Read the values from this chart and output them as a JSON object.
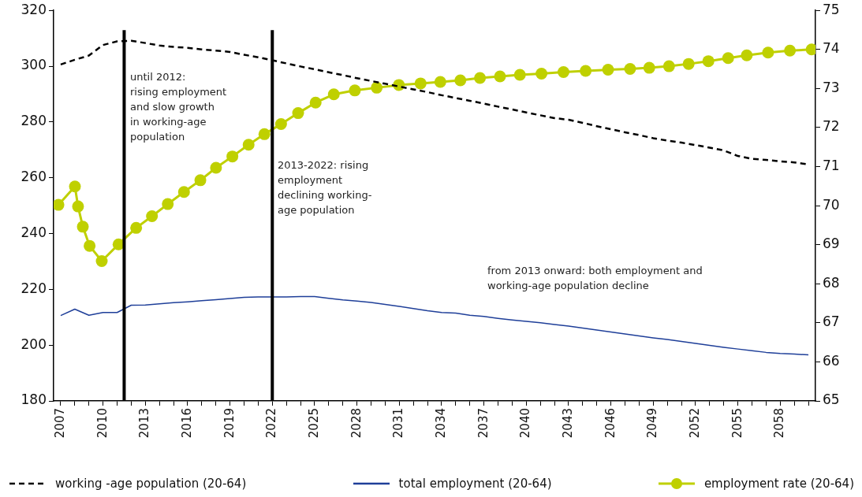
{
  "chart_data": {
    "type": "line",
    "xlim": [
      2006.5,
      2060.5
    ],
    "xticks": [
      {
        "value": 2007,
        "label": "2007"
      },
      {
        "value": 2008,
        "label": null
      },
      {
        "value": 2009,
        "label": null
      },
      {
        "value": 2010,
        "label": "2010"
      },
      {
        "value": 2011,
        "label": null
      },
      {
        "value": 2012,
        "label": null
      },
      {
        "value": 2013,
        "label": "2013"
      },
      {
        "value": 2014,
        "label": null
      },
      {
        "value": 2015,
        "label": null
      },
      {
        "value": 2016,
        "label": "2016"
      },
      {
        "value": 2017,
        "label": null
      },
      {
        "value": 2018,
        "label": null
      },
      {
        "value": 2019,
        "label": "2019"
      },
      {
        "value": 2020,
        "label": null
      },
      {
        "value": 2021,
        "label": null
      },
      {
        "value": 2022,
        "label": "2022"
      },
      {
        "value": 2023,
        "label": null
      },
      {
        "value": 2024,
        "label": null
      },
      {
        "value": 2025,
        "label": "2025"
      },
      {
        "value": 2026,
        "label": null
      },
      {
        "value": 2027,
        "label": null
      },
      {
        "value": 2028,
        "label": "2028"
      },
      {
        "value": 2029,
        "label": null
      },
      {
        "value": 2030,
        "label": null
      },
      {
        "value": 2031,
        "label": "2031"
      },
      {
        "value": 2032,
        "label": null
      },
      {
        "value": 2033,
        "label": null
      },
      {
        "value": 2034,
        "label": "2034"
      },
      {
        "value": 2035,
        "label": null
      },
      {
        "value": 2036,
        "label": null
      },
      {
        "value": 2037,
        "label": "2037"
      },
      {
        "value": 2038,
        "label": null
      },
      {
        "value": 2039,
        "label": null
      },
      {
        "value": 2040,
        "label": "2040"
      },
      {
        "value": 2041,
        "label": null
      },
      {
        "value": 2042,
        "label": null
      },
      {
        "value": 2043,
        "label": "2043"
      },
      {
        "value": 2044,
        "label": null
      },
      {
        "value": 2045,
        "label": null
      },
      {
        "value": 2046,
        "label": "2046"
      },
      {
        "value": 2047,
        "label": null
      },
      {
        "value": 2048,
        "label": null
      },
      {
        "value": 2049,
        "label": "2049"
      },
      {
        "value": 2050,
        "label": null
      },
      {
        "value": 2051,
        "label": null
      },
      {
        "value": 2052,
        "label": "2052"
      },
      {
        "value": 2053,
        "label": null
      },
      {
        "value": 2054,
        "label": null
      },
      {
        "value": 2055,
        "label": "2055"
      },
      {
        "value": 2056,
        "label": null
      },
      {
        "value": 2057,
        "label": null
      },
      {
        "value": 2058,
        "label": "2058"
      },
      {
        "value": 2059,
        "label": null
      },
      {
        "value": 2060,
        "label": null
      }
    ],
    "ylim": [
      180,
      320
    ],
    "yticks": [
      180,
      200,
      220,
      240,
      260,
      280,
      300,
      320
    ],
    "y2lim": [
      65,
      75
    ],
    "y2ticks": [
      65,
      66,
      67,
      68,
      69,
      70,
      71,
      72,
      73,
      74,
      75
    ],
    "grid": false,
    "legend": "bottom",
    "x": [
      2007,
      2008,
      2009,
      2010,
      2011,
      2012,
      2013,
      2014,
      2015,
      2016,
      2017,
      2018,
      2019,
      2020,
      2021,
      2022,
      2023,
      2024,
      2025,
      2026,
      2027,
      2028,
      2029,
      2030,
      2031,
      2032,
      2033,
      2034,
      2035,
      2036,
      2037,
      2038,
      2039,
      2040,
      2041,
      2042,
      2043,
      2044,
      2045,
      2046,
      2047,
      2048,
      2049,
      2050,
      2051,
      2052,
      2053,
      2054,
      2055,
      2056,
      2057,
      2058,
      2059,
      2060
    ],
    "series": [
      {
        "name": "working -age population (20-64)",
        "color": "#000000",
        "line_style": "dashed",
        "marker": "none",
        "values": [
          300.6,
          302.3,
          303.8,
          307.6,
          308.9,
          309.1,
          308.3,
          307.4,
          306.9,
          306.6,
          306.0,
          305.6,
          305.1,
          304.1,
          303.2,
          302.1,
          301.0,
          299.9,
          298.9,
          297.8,
          296.8,
          295.7,
          294.7,
          293.7,
          292.7,
          291.7,
          290.7,
          289.6,
          288.6,
          287.6,
          286.6,
          285.5,
          284.5,
          283.4,
          282.4,
          281.4,
          280.8,
          279.7,
          278.5,
          277.4,
          276.3,
          275.3,
          274.2,
          273.3,
          272.6,
          271.7,
          270.8,
          269.8,
          267.8,
          266.8,
          266.4,
          265.9,
          265.5,
          264.8
        ]
      },
      {
        "name": "total employment (20-64)",
        "color": "#1f3f99",
        "line_style": "solid",
        "marker": "none",
        "values": [
          210.6,
          212.9,
          210.7,
          211.7,
          211.7,
          214.3,
          214.4,
          214.8,
          215.2,
          215.5,
          215.9,
          216.3,
          216.7,
          217.1,
          217.3,
          217.3,
          217.3,
          217.4,
          217.4,
          216.8,
          216.2,
          215.8,
          215.3,
          214.6,
          213.9,
          213.1,
          212.3,
          211.7,
          211.5,
          210.7,
          210.3,
          209.6,
          209.0,
          208.5,
          208.0,
          207.4,
          206.8,
          206.1,
          205.4,
          204.7,
          204.0,
          203.3,
          202.6,
          202.0,
          201.3,
          200.6,
          199.9,
          199.2,
          198.6,
          198.0,
          197.4,
          197.0,
          196.8,
          196.5
        ]
      },
      {
        "name": "employment rate (20-64)",
        "color": "#bfd000",
        "line_style": "solid",
        "marker": "circle",
        "axis": "y2",
        "x": [
          2006.84,
          2008.01,
          2008.23,
          2008.57,
          2009.05,
          2009.91,
          2011.1,
          2012.35,
          2013.47,
          2014.59,
          2015.74,
          2016.9,
          2018.01,
          2019.17,
          2020.32,
          2021.44,
          2022.62,
          2023.83,
          2025.07,
          2026.36,
          2027.85,
          2029.4,
          2030.97,
          2032.51,
          2033.91,
          2035.33,
          2036.72,
          2038.14,
          2039.55,
          2041.08,
          2042.64,
          2044.21,
          2045.8,
          2047.36,
          2048.72,
          2050.12,
          2051.51,
          2052.91,
          2054.31,
          2055.63,
          2057.14,
          2058.69,
          2060.23
        ],
        "values": [
          70.02,
          70.49,
          69.98,
          69.46,
          68.97,
          68.58,
          69.01,
          69.43,
          69.73,
          70.04,
          70.35,
          70.65,
          70.97,
          71.26,
          71.56,
          71.83,
          72.09,
          72.37,
          72.64,
          72.85,
          72.95,
          73.02,
          73.09,
          73.13,
          73.17,
          73.21,
          73.27,
          73.31,
          73.35,
          73.38,
          73.42,
          73.45,
          73.48,
          73.5,
          73.53,
          73.57,
          73.63,
          73.7,
          73.78,
          73.85,
          73.92,
          73.97,
          74.0
        ]
      }
    ],
    "ref_lines": [
      {
        "axis": "x",
        "value": 2011.5,
        "color": "#000000"
      },
      {
        "axis": "x",
        "value": 2022,
        "color": "#000000"
      }
    ],
    "annotations": [
      "until 2012:\nrising employment\nand slow growth\nin working-age\npopulation",
      "2013-2022: rising\nemployment\ndeclining working-\nage population",
      "from 2013 onward: both employment and\nworking-age population decline"
    ]
  }
}
